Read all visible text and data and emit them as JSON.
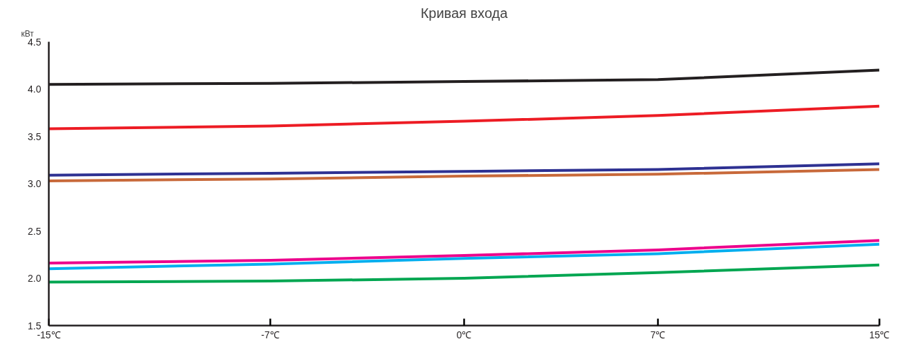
{
  "chart_data": {
    "type": "line",
    "title": "Кривая входа",
    "ylabel": "кВт",
    "x": [
      -15,
      -7,
      0,
      7,
      15
    ],
    "series": [
      {
        "color": "#231f20",
        "values": [
          4.05,
          4.06,
          4.08,
          4.1,
          4.2
        ]
      },
      {
        "color": "#ed1c24",
        "values": [
          3.58,
          3.61,
          3.66,
          3.72,
          3.82
        ]
      },
      {
        "color": "#2e3192",
        "values": [
          3.09,
          3.11,
          3.13,
          3.15,
          3.21
        ]
      },
      {
        "color": "#c8693a",
        "values": [
          3.03,
          3.05,
          3.08,
          3.1,
          3.15
        ]
      },
      {
        "color": "#ec008c",
        "values": [
          2.16,
          2.19,
          2.24,
          2.3,
          2.4
        ]
      },
      {
        "color": "#00aeef",
        "values": [
          2.1,
          2.15,
          2.21,
          2.26,
          2.36
        ]
      },
      {
        "color": "#00a651",
        "values": [
          1.96,
          1.97,
          2.0,
          2.06,
          2.14
        ]
      }
    ],
    "xlim": [
      -15,
      15
    ],
    "xticks": [
      {
        "value": -15,
        "label": "-15℃"
      },
      {
        "value": -7,
        "label": "-7℃"
      },
      {
        "value": 0,
        "label": "0℃"
      },
      {
        "value": 7,
        "label": "7℃"
      },
      {
        "value": 15,
        "label": "15℃"
      }
    ],
    "ylim": [
      1.5,
      4.5
    ],
    "yticks": [
      {
        "value": 1.5,
        "label": "1.5"
      },
      {
        "value": 2.0,
        "label": "2.0"
      },
      {
        "value": 2.5,
        "label": "2.5"
      },
      {
        "value": 3.0,
        "label": "3.0"
      },
      {
        "value": 3.5,
        "label": "3.5"
      },
      {
        "value": 4.0,
        "label": "4.0"
      },
      {
        "value": 4.5,
        "label": "4.5"
      }
    ],
    "grid": false,
    "marker": "none",
    "line_style": "solid"
  }
}
